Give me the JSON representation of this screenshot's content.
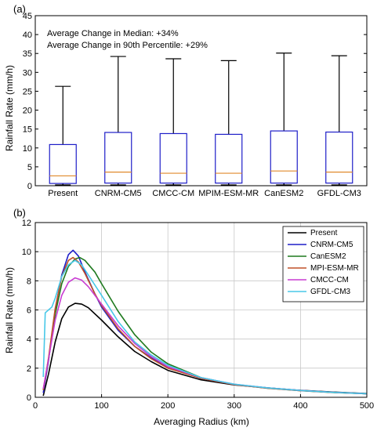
{
  "chart_data": [
    {
      "type": "box",
      "panel_label": "(a)",
      "ylabel": "Rainfall Rate (mm/h)",
      "ylim": [
        0,
        45
      ],
      "yticks": [
        0,
        5,
        10,
        15,
        20,
        25,
        30,
        35,
        40,
        45
      ],
      "grid": false,
      "annotations": [
        "Average Change in Median: +34%",
        "Average Change in 90th Percentile: +29%"
      ],
      "box_color": "#1e1ec8",
      "median_color": "#e08a2c",
      "categories": [
        "Present",
        "CNRM-CM5",
        "CMCC-CM",
        "MPIM-ESM-MR",
        "CanESM2",
        "GFDL-CM3"
      ],
      "boxes": [
        {
          "name": "Present",
          "whisker_low": 0.2,
          "q1": 0.6,
          "median": 2.6,
          "q3": 10.9,
          "whisker_high": 26.3
        },
        {
          "name": "CNRM-CM5",
          "whisker_low": 0.2,
          "q1": 0.7,
          "median": 3.6,
          "q3": 14.1,
          "whisker_high": 34.2
        },
        {
          "name": "CMCC-CM",
          "whisker_low": 0.2,
          "q1": 0.7,
          "median": 3.3,
          "q3": 13.8,
          "whisker_high": 33.6
        },
        {
          "name": "MPIM-ESM-MR",
          "whisker_low": 0.2,
          "q1": 0.7,
          "median": 3.3,
          "q3": 13.6,
          "whisker_high": 33.1
        },
        {
          "name": "CanESM2",
          "whisker_low": 0.2,
          "q1": 0.7,
          "median": 3.9,
          "q3": 14.5,
          "whisker_high": 35.1
        },
        {
          "name": "GFDL-CM3",
          "whisker_low": 0.2,
          "q1": 0.7,
          "median": 3.6,
          "q3": 14.2,
          "whisker_high": 34.4
        }
      ]
    },
    {
      "type": "line",
      "panel_label": "(b)",
      "xlabel": "Averaging Radius (km)",
      "ylabel": "Rainfall Rate (mm/h)",
      "xlim": [
        0,
        500
      ],
      "ylim": [
        0,
        12
      ],
      "xticks": [
        0,
        100,
        200,
        300,
        400,
        500
      ],
      "yticks": [
        0,
        2,
        4,
        6,
        8,
        10,
        12
      ],
      "grid": true,
      "legend_position": "top-right",
      "series": [
        {
          "name": "Present",
          "color": "#000000",
          "x": [
            12,
            20,
            30,
            40,
            50,
            60,
            70,
            80,
            100,
            125,
            150,
            175,
            200,
            250,
            300,
            350,
            400,
            450,
            500
          ],
          "y": [
            0.1,
            1.6,
            3.8,
            5.4,
            6.2,
            6.45,
            6.4,
            6.15,
            5.3,
            4.15,
            3.15,
            2.45,
            1.85,
            1.2,
            0.85,
            0.65,
            0.48,
            0.36,
            0.26
          ]
        },
        {
          "name": "CNRM-CM5",
          "color": "#1e1ec8",
          "x": [
            12,
            20,
            30,
            40,
            50,
            57,
            65,
            75,
            90,
            100,
            125,
            150,
            175,
            200,
            250,
            300,
            350,
            400,
            450,
            500
          ],
          "y": [
            0.3,
            2.5,
            6.0,
            8.4,
            9.8,
            10.1,
            9.7,
            8.6,
            7.1,
            6.2,
            4.6,
            3.5,
            2.7,
            2.05,
            1.3,
            0.88,
            0.64,
            0.47,
            0.34,
            0.24
          ]
        },
        {
          "name": "CanESM2",
          "color": "#1f7a1f",
          "x": [
            12,
            20,
            30,
            40,
            50,
            60,
            67,
            75,
            90,
            100,
            125,
            150,
            175,
            200,
            250,
            300,
            350,
            400,
            450,
            500
          ],
          "y": [
            0.5,
            2.6,
            5.7,
            7.8,
            9.0,
            9.5,
            9.6,
            9.4,
            8.6,
            7.8,
            5.9,
            4.3,
            3.1,
            2.3,
            1.35,
            0.88,
            0.62,
            0.45,
            0.33,
            0.24
          ]
        },
        {
          "name": "MPI-ESM-MR",
          "color": "#c05028",
          "x": [
            12,
            20,
            30,
            40,
            50,
            57,
            65,
            75,
            90,
            100,
            125,
            150,
            175,
            200,
            250,
            300,
            350,
            400,
            450,
            500
          ],
          "y": [
            0.5,
            2.7,
            6.1,
            8.3,
            9.4,
            9.6,
            9.3,
            8.5,
            7.1,
            6.3,
            4.7,
            3.5,
            2.65,
            2.0,
            1.3,
            0.87,
            0.63,
            0.46,
            0.34,
            0.24
          ]
        },
        {
          "name": "CMCC-CM",
          "color": "#c83cd2",
          "x": [
            12,
            20,
            30,
            40,
            50,
            60,
            70,
            80,
            100,
            125,
            150,
            175,
            200,
            250,
            300,
            350,
            400,
            450,
            500
          ],
          "y": [
            0.6,
            2.6,
            5.3,
            7.0,
            7.9,
            8.2,
            8.05,
            7.6,
            6.4,
            4.9,
            3.7,
            2.8,
            2.1,
            1.35,
            0.9,
            0.65,
            0.47,
            0.34,
            0.25
          ]
        },
        {
          "name": "GFDL-CM3",
          "color": "#48c8e8",
          "x": [
            12,
            15,
            20,
            25,
            30,
            40,
            50,
            60,
            70,
            80,
            100,
            125,
            150,
            175,
            200,
            250,
            300,
            350,
            400,
            450,
            500
          ],
          "y": [
            1.4,
            5.8,
            6.0,
            6.2,
            6.8,
            8.3,
            9.1,
            9.4,
            9.1,
            8.4,
            7.0,
            5.2,
            3.8,
            2.9,
            2.2,
            1.35,
            0.9,
            0.65,
            0.47,
            0.34,
            0.25
          ]
        }
      ]
    }
  ]
}
